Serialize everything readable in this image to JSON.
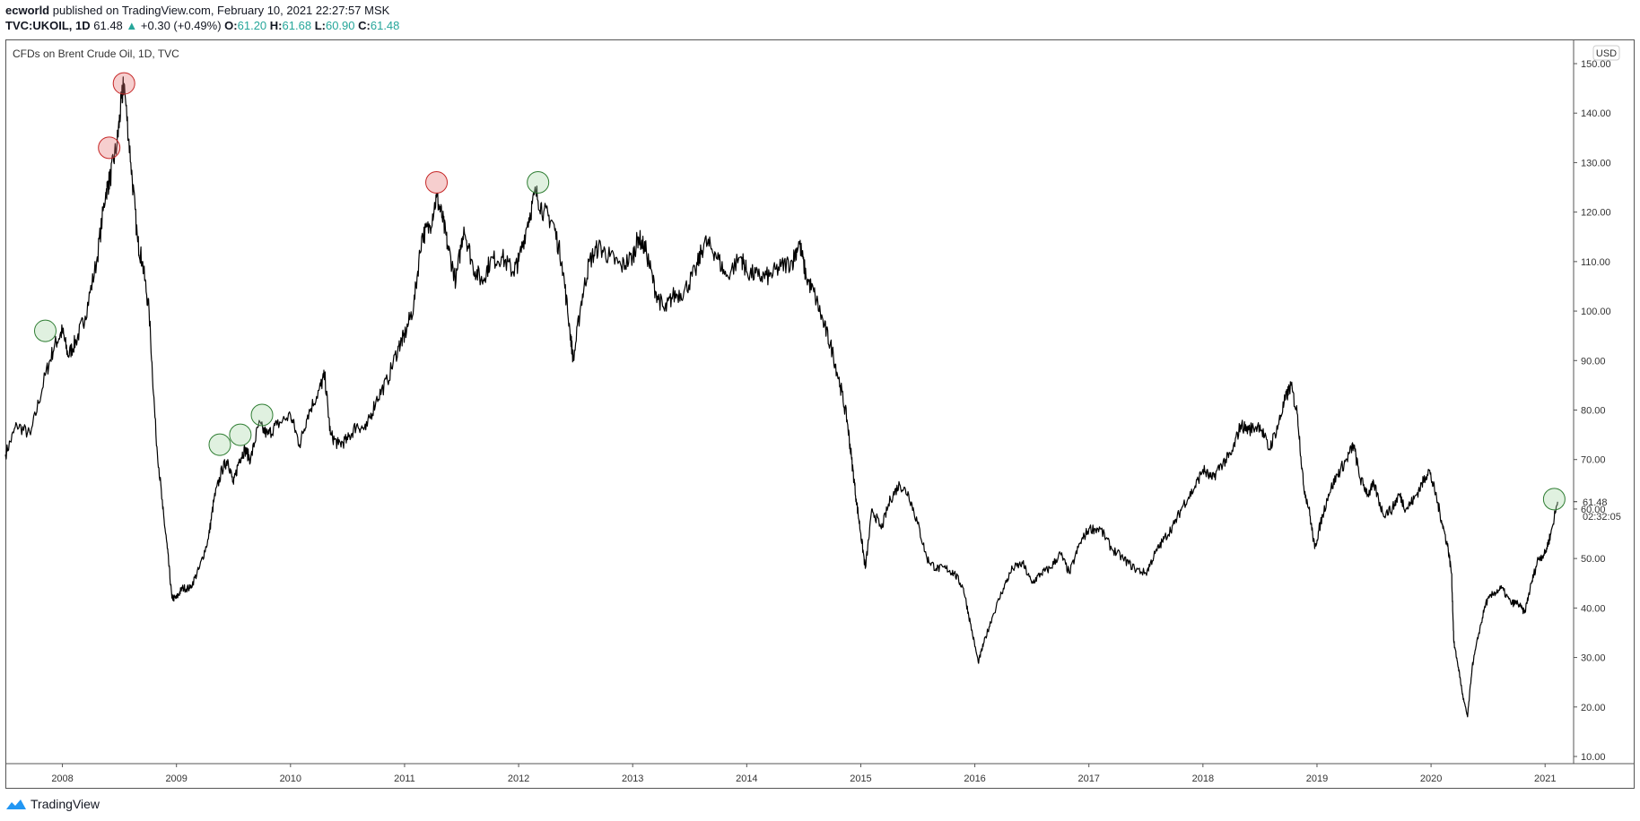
{
  "header": {
    "author": "ecworld",
    "published_text": " published on TradingView.com, February 10, 2021 22:27:57 MSK",
    "symbol": "TVC:UKOIL, 1D",
    "last": "61.48",
    "change_arrow": "▲",
    "change": "+0.30 (+0.49%)",
    "o_label": "O:",
    "o_value": "61.20",
    "h_label": "H:",
    "h_value": "61.68",
    "l_label": "L:",
    "l_value": "60.90",
    "c_label": "C:",
    "c_value": "61.48"
  },
  "chart_data": {
    "type": "line",
    "title": "CFDs on Brent Crude Oil, 1D, TVC",
    "currency": "USD",
    "x_ticks": [
      "2008",
      "2009",
      "2010",
      "2011",
      "2012",
      "2013",
      "2014",
      "2015",
      "2016",
      "2017",
      "2018",
      "2019",
      "2020",
      "2021"
    ],
    "y_ticks": [
      "150.00",
      "140.00",
      "130.00",
      "120.00",
      "110.00",
      "100.00",
      "90.00",
      "80.00",
      "70.00",
      "60.00",
      "50.00",
      "40.00",
      "30.00",
      "20.00",
      "10.00"
    ],
    "ylim": [
      10,
      150
    ],
    "xlim": [
      2007.5,
      2021.25
    ],
    "last_price_label": "61.48",
    "countdown_label": "02:32:05",
    "series": [
      {
        "values": [
          [
            2007.5,
            71
          ],
          [
            2007.6,
            77
          ],
          [
            2007.72,
            75
          ],
          [
            2007.85,
            87
          ],
          [
            2007.93,
            93
          ],
          [
            2008.0,
            96
          ],
          [
            2008.05,
            91
          ],
          [
            2008.12,
            94
          ],
          [
            2008.2,
            99
          ],
          [
            2008.3,
            110
          ],
          [
            2008.38,
            124
          ],
          [
            2008.42,
            127
          ],
          [
            2008.48,
            134
          ],
          [
            2008.52,
            143
          ],
          [
            2008.54,
            146
          ],
          [
            2008.6,
            130
          ],
          [
            2008.66,
            114
          ],
          [
            2008.7,
            110
          ],
          [
            2008.76,
            100
          ],
          [
            2008.82,
            75
          ],
          [
            2008.88,
            60
          ],
          [
            2008.92,
            52
          ],
          [
            2008.96,
            42
          ],
          [
            2009.0,
            42
          ],
          [
            2009.05,
            44
          ],
          [
            2009.12,
            44
          ],
          [
            2009.2,
            48
          ],
          [
            2009.28,
            54
          ],
          [
            2009.33,
            62
          ],
          [
            2009.4,
            68
          ],
          [
            2009.45,
            70
          ],
          [
            2009.5,
            65
          ],
          [
            2009.55,
            70
          ],
          [
            2009.6,
            72
          ],
          [
            2009.65,
            70
          ],
          [
            2009.72,
            77
          ],
          [
            2009.8,
            75
          ],
          [
            2009.88,
            77
          ],
          [
            2010.0,
            79
          ],
          [
            2010.08,
            73
          ],
          [
            2010.15,
            79
          ],
          [
            2010.25,
            84
          ],
          [
            2010.3,
            87
          ],
          [
            2010.35,
            75
          ],
          [
            2010.42,
            73
          ],
          [
            2010.5,
            74
          ],
          [
            2010.58,
            77
          ],
          [
            2010.66,
            76
          ],
          [
            2010.75,
            82
          ],
          [
            2010.85,
            86
          ],
          [
            2010.95,
            93
          ],
          [
            2011.0,
            95
          ],
          [
            2011.08,
            101
          ],
          [
            2011.15,
            115
          ],
          [
            2011.22,
            117
          ],
          [
            2011.28,
            123
          ],
          [
            2011.33,
            119
          ],
          [
            2011.38,
            113
          ],
          [
            2011.45,
            106
          ],
          [
            2011.52,
            117
          ],
          [
            2011.6,
            109
          ],
          [
            2011.68,
            106
          ],
          [
            2011.75,
            110
          ],
          [
            2011.85,
            111
          ],
          [
            2011.95,
            108
          ],
          [
            2012.0,
            110
          ],
          [
            2012.08,
            118
          ],
          [
            2012.15,
            124
          ],
          [
            2012.22,
            120
          ],
          [
            2012.3,
            118
          ],
          [
            2012.38,
            110
          ],
          [
            2012.45,
            96
          ],
          [
            2012.48,
            90
          ],
          [
            2012.55,
            102
          ],
          [
            2012.62,
            110
          ],
          [
            2012.7,
            113
          ],
          [
            2012.8,
            111
          ],
          [
            2012.9,
            109
          ],
          [
            2013.0,
            111
          ],
          [
            2013.05,
            115
          ],
          [
            2013.12,
            112
          ],
          [
            2013.2,
            104
          ],
          [
            2013.28,
            100
          ],
          [
            2013.35,
            103
          ],
          [
            2013.45,
            104
          ],
          [
            2013.55,
            108
          ],
          [
            2013.63,
            114
          ],
          [
            2013.72,
            112
          ],
          [
            2013.82,
            107
          ],
          [
            2013.95,
            111
          ],
          [
            2014.0,
            108
          ],
          [
            2014.1,
            107
          ],
          [
            2014.2,
            107
          ],
          [
            2014.3,
            109
          ],
          [
            2014.4,
            110
          ],
          [
            2014.46,
            114
          ],
          [
            2014.52,
            107
          ],
          [
            2014.6,
            103
          ],
          [
            2014.68,
            97
          ],
          [
            2014.75,
            92
          ],
          [
            2014.82,
            85
          ],
          [
            2014.88,
            78
          ],
          [
            2014.92,
            70
          ],
          [
            2014.96,
            62
          ],
          [
            2015.0,
            55
          ],
          [
            2015.04,
            48
          ],
          [
            2015.1,
            60
          ],
          [
            2015.18,
            56
          ],
          [
            2015.26,
            62
          ],
          [
            2015.34,
            65
          ],
          [
            2015.42,
            63
          ],
          [
            2015.5,
            57
          ],
          [
            2015.58,
            50
          ],
          [
            2015.66,
            48
          ],
          [
            2015.75,
            48
          ],
          [
            2015.82,
            47
          ],
          [
            2015.9,
            44
          ],
          [
            2015.96,
            37
          ],
          [
            2016.03,
            29
          ],
          [
            2016.08,
            33
          ],
          [
            2016.15,
            38
          ],
          [
            2016.25,
            44
          ],
          [
            2016.33,
            48
          ],
          [
            2016.42,
            49
          ],
          [
            2016.5,
            45
          ],
          [
            2016.58,
            47
          ],
          [
            2016.66,
            48
          ],
          [
            2016.75,
            51
          ],
          [
            2016.83,
            47
          ],
          [
            2016.92,
            53
          ],
          [
            2017.0,
            56
          ],
          [
            2017.1,
            56
          ],
          [
            2017.2,
            52
          ],
          [
            2017.3,
            50
          ],
          [
            2017.4,
            48
          ],
          [
            2017.5,
            47
          ],
          [
            2017.58,
            51
          ],
          [
            2017.66,
            54
          ],
          [
            2017.75,
            57
          ],
          [
            2017.83,
            61
          ],
          [
            2017.92,
            64
          ],
          [
            2018.0,
            68
          ],
          [
            2018.08,
            66
          ],
          [
            2018.16,
            69
          ],
          [
            2018.25,
            71
          ],
          [
            2018.33,
            77
          ],
          [
            2018.4,
            76
          ],
          [
            2018.5,
            77
          ],
          [
            2018.58,
            72
          ],
          [
            2018.66,
            77
          ],
          [
            2018.72,
            82
          ],
          [
            2018.77,
            85
          ],
          [
            2018.83,
            79
          ],
          [
            2018.88,
            65
          ],
          [
            2018.93,
            60
          ],
          [
            2018.98,
            52
          ],
          [
            2019.03,
            57
          ],
          [
            2019.1,
            63
          ],
          [
            2019.18,
            67
          ],
          [
            2019.26,
            70
          ],
          [
            2019.32,
            73
          ],
          [
            2019.38,
            66
          ],
          [
            2019.45,
            63
          ],
          [
            2019.5,
            65
          ],
          [
            2019.58,
            59
          ],
          [
            2019.66,
            60
          ],
          [
            2019.72,
            63
          ],
          [
            2019.78,
            60
          ],
          [
            2019.85,
            62
          ],
          [
            2019.92,
            65
          ],
          [
            2019.98,
            68
          ],
          [
            2020.04,
            63
          ],
          [
            2020.1,
            57
          ],
          [
            2020.15,
            52
          ],
          [
            2020.18,
            47
          ],
          [
            2020.2,
            33
          ],
          [
            2020.24,
            28
          ],
          [
            2020.28,
            22
          ],
          [
            2020.32,
            18
          ],
          [
            2020.36,
            28
          ],
          [
            2020.42,
            35
          ],
          [
            2020.48,
            41
          ],
          [
            2020.55,
            43
          ],
          [
            2020.62,
            44
          ],
          [
            2020.7,
            41
          ],
          [
            2020.76,
            41
          ],
          [
            2020.82,
            39
          ],
          [
            2020.88,
            45
          ],
          [
            2020.94,
            50
          ],
          [
            2021.0,
            51
          ],
          [
            2021.05,
            55
          ],
          [
            2021.11,
            61.48
          ]
        ]
      }
    ],
    "markers": [
      {
        "x": 2007.85,
        "y": 96,
        "color": "green"
      },
      {
        "x": 2008.41,
        "y": 133,
        "color": "red"
      },
      {
        "x": 2008.54,
        "y": 146,
        "color": "red"
      },
      {
        "x": 2009.38,
        "y": 73,
        "color": "green"
      },
      {
        "x": 2009.56,
        "y": 75,
        "color": "green"
      },
      {
        "x": 2009.75,
        "y": 79,
        "color": "green"
      },
      {
        "x": 2011.28,
        "y": 126,
        "color": "red"
      },
      {
        "x": 2012.17,
        "y": 126,
        "color": "green"
      },
      {
        "x": 2021.08,
        "y": 62,
        "color": "green"
      }
    ],
    "grid": false
  },
  "footer": {
    "brand": "TradingView"
  }
}
